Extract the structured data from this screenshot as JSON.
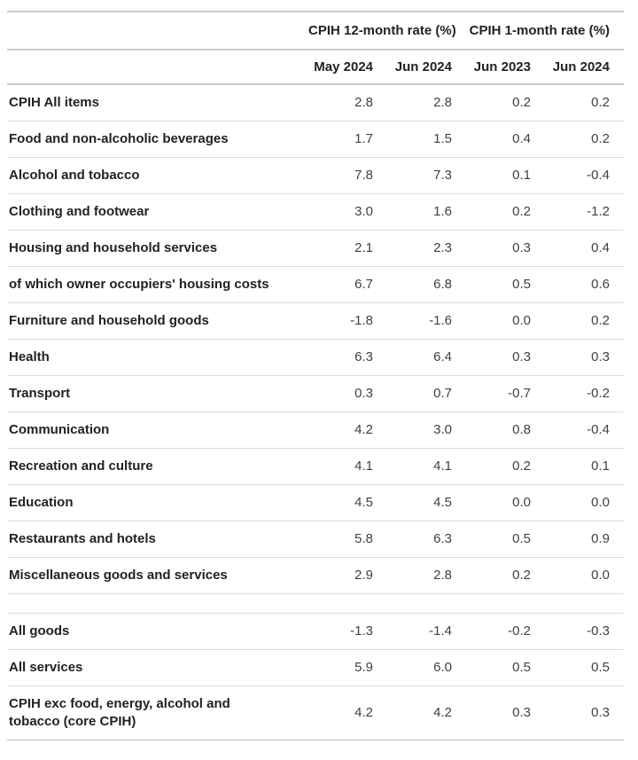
{
  "chart_data": {
    "type": "table",
    "column_groups": [
      "CPIH 12-month rate (%)",
      "CPIH 1-month rate (%)"
    ],
    "columns": [
      "May 2024",
      "Jun 2024",
      "Jun 2023",
      "Jun 2024"
    ],
    "rows": [
      {
        "label": "CPIH All items",
        "values": [
          "2.8",
          "2.8",
          "0.2",
          "0.2"
        ]
      },
      {
        "label": "Food and non-alcoholic beverages",
        "values": [
          "1.7",
          "1.5",
          "0.4",
          "0.2"
        ]
      },
      {
        "label": "Alcohol and tobacco",
        "values": [
          "7.8",
          "7.3",
          "0.1",
          "-0.4"
        ]
      },
      {
        "label": "Clothing and footwear",
        "values": [
          "3.0",
          "1.6",
          "0.2",
          "-1.2"
        ]
      },
      {
        "label": "Housing and household services",
        "values": [
          "2.1",
          "2.3",
          "0.3",
          "0.4"
        ]
      },
      {
        "label": "of which owner occupiers' housing costs",
        "values": [
          "6.7",
          "6.8",
          "0.5",
          "0.6"
        ]
      },
      {
        "label": "Furniture and household goods",
        "values": [
          "-1.8",
          "-1.6",
          "0.0",
          "0.2"
        ]
      },
      {
        "label": "Health",
        "values": [
          "6.3",
          "6.4",
          "0.3",
          "0.3"
        ]
      },
      {
        "label": "Transport",
        "values": [
          "0.3",
          "0.7",
          "-0.7",
          "-0.2"
        ]
      },
      {
        "label": "Communication",
        "values": [
          "4.2",
          "3.0",
          "0.8",
          "-0.4"
        ]
      },
      {
        "label": "Recreation and culture",
        "values": [
          "4.1",
          "4.1",
          "0.2",
          "0.1"
        ]
      },
      {
        "label": "Education",
        "values": [
          "4.5",
          "4.5",
          "0.0",
          "0.0"
        ]
      },
      {
        "label": "Restaurants and hotels",
        "values": [
          "5.8",
          "6.3",
          "0.5",
          "0.9"
        ]
      },
      {
        "label": "Miscellaneous goods and services",
        "values": [
          "2.9",
          "2.8",
          "0.2",
          "0.0"
        ]
      },
      {
        "spacer": true,
        "label": "",
        "values": [
          "",
          "",
          "",
          ""
        ]
      },
      {
        "label": "All goods",
        "values": [
          "-1.3",
          "-1.4",
          "-0.2",
          "-0.3"
        ]
      },
      {
        "label": "All services",
        "values": [
          "5.9",
          "6.0",
          "0.5",
          "0.5"
        ]
      },
      {
        "label": "CPIH exc food, energy, alcohol and tobacco (core CPIH)",
        "values": [
          "4.2",
          "4.2",
          "0.3",
          "0.3"
        ]
      }
    ],
    "layout": {
      "legend": "none",
      "grid": "horizontal-row-separators"
    },
    "colors": {
      "label_text": "#222222",
      "value_text": "#414042",
      "row_border": "#dcdcdc",
      "header_border": "#cccccc",
      "bottom_border": "#bdbdbd",
      "background": "#ffffff"
    }
  }
}
